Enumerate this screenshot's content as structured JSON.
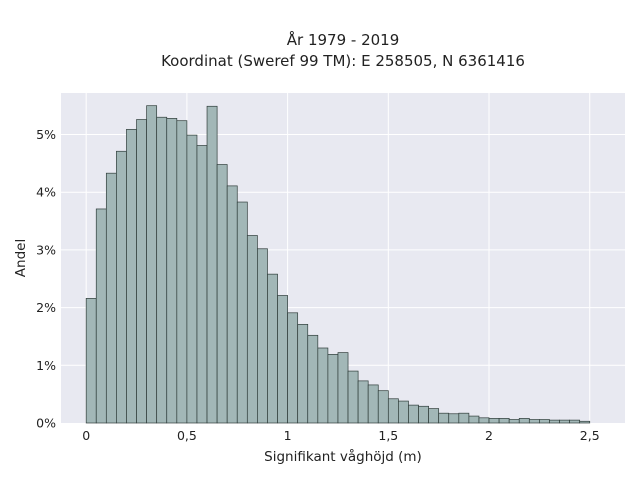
{
  "chart_data": {
    "type": "bar",
    "title_line1": "År 1979 - 2019",
    "title_line2": "Koordinat (Sweref 99 TM): E 258505, N 6361416",
    "xlabel": "Signifikant våghöjd (m)",
    "ylabel": "Andel",
    "x_ticks": [
      {
        "value": 0,
        "label": "0"
      },
      {
        "value": 0.5,
        "label": "0,5"
      },
      {
        "value": 1,
        "label": "1"
      },
      {
        "value": 1.5,
        "label": "1,5"
      },
      {
        "value": 2,
        "label": "2"
      },
      {
        "value": 2.5,
        "label": "2,5"
      }
    ],
    "y_ticks": [
      {
        "value": 0,
        "label": "0%"
      },
      {
        "value": 1,
        "label": "1%"
      },
      {
        "value": 2,
        "label": "2%"
      },
      {
        "value": 3,
        "label": "3%"
      },
      {
        "value": 4,
        "label": "4%"
      },
      {
        "value": 5,
        "label": "5%"
      }
    ],
    "xlim": [
      -0.125,
      2.675
    ],
    "ylim": [
      0,
      5.72
    ],
    "bin_start": 0.0,
    "bin_width": 0.05,
    "values": [
      2.16,
      3.71,
      4.33,
      4.71,
      5.09,
      5.26,
      5.5,
      5.3,
      5.28,
      5.24,
      4.99,
      4.81,
      5.49,
      4.48,
      4.11,
      3.83,
      3.25,
      3.02,
      2.58,
      2.21,
      1.91,
      1.71,
      1.52,
      1.3,
      1.19,
      1.22,
      0.9,
      0.73,
      0.66,
      0.56,
      0.42,
      0.38,
      0.31,
      0.29,
      0.25,
      0.17,
      0.16,
      0.17,
      0.12,
      0.09,
      0.08,
      0.08,
      0.06,
      0.08,
      0.06,
      0.06,
      0.05,
      0.05,
      0.05,
      0.03
    ],
    "grid": true,
    "colors": {
      "plot_bg": "#e8e9f1",
      "grid": "#ffffff",
      "bar_fill": "#a2b7b7",
      "bar_edge": "#2f3d3a"
    }
  }
}
